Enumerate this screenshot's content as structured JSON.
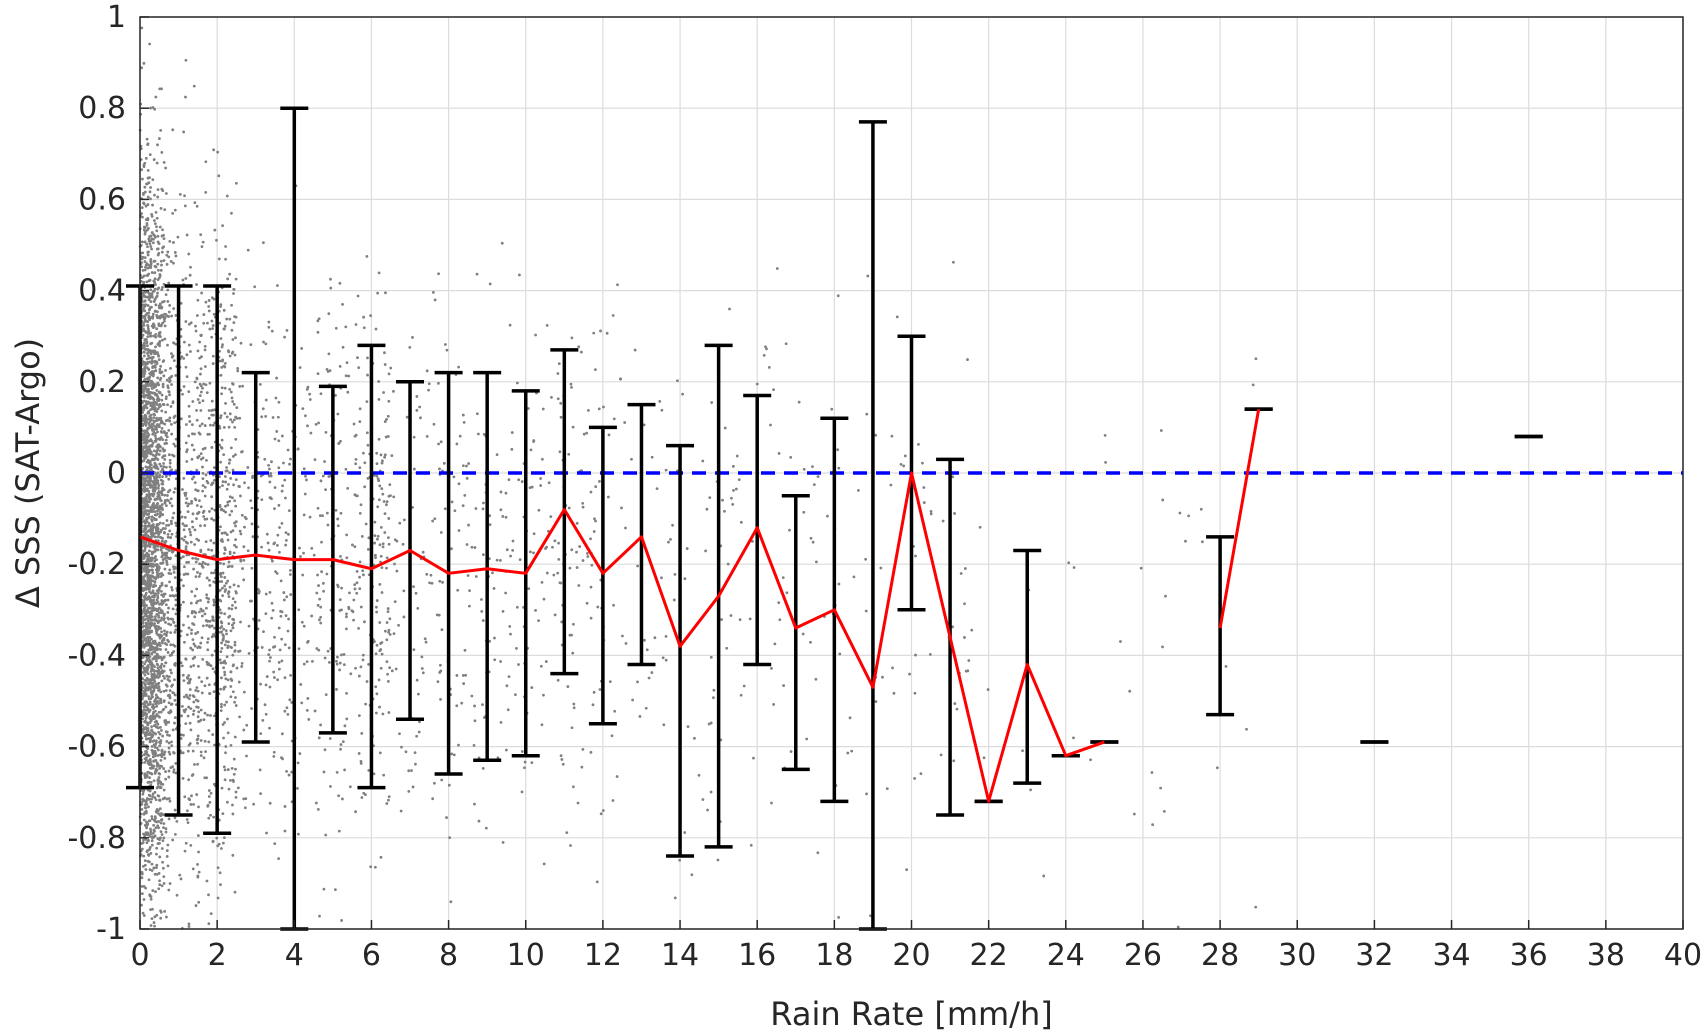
{
  "chart_data": {
    "type": "scatter",
    "xlabel": "Rain Rate [mm/h]",
    "ylabel": "Δ SSS (SAT-Argo)",
    "xlim": [
      0,
      40
    ],
    "ylim": [
      -1,
      1
    ],
    "xticks": [
      0,
      2,
      4,
      6,
      8,
      10,
      12,
      14,
      16,
      18,
      20,
      22,
      24,
      26,
      28,
      30,
      32,
      34,
      36,
      38,
      40
    ],
    "xtick_labels": [
      "0",
      "2",
      "4",
      "6",
      "8",
      "10",
      "12",
      "14",
      "16",
      "18",
      "20",
      "22",
      "24",
      "26",
      "28",
      "30",
      "32",
      "34",
      "36",
      "38",
      "40"
    ],
    "yticks": [
      -1,
      -0.8,
      -0.6,
      -0.4,
      -0.2,
      0,
      0.2,
      0.4,
      0.6,
      0.8,
      1
    ],
    "ytick_labels": [
      "-1",
      "-0.8",
      "-0.6",
      "-0.4",
      "-0.2",
      "0",
      "0.2",
      "0.4",
      "0.6",
      "0.8",
      "1"
    ],
    "grid": true,
    "series": [
      {
        "kind": "scatter",
        "color": "#808080"
      },
      {
        "kind": "errorbar",
        "color": "#000000",
        "x": [
          0,
          1,
          2,
          3,
          4,
          5,
          6,
          7,
          8,
          9,
          10,
          11,
          12,
          13,
          14,
          15,
          16,
          17,
          18,
          19,
          20,
          21,
          22,
          23,
          24,
          25,
          28,
          29,
          32,
          36
        ],
        "lower": [
          -0.69,
          -0.75,
          -0.79,
          -0.59,
          -1.0,
          -0.57,
          -0.69,
          -0.54,
          -0.66,
          -0.63,
          -0.62,
          -0.44,
          -0.55,
          -0.42,
          -0.84,
          -0.82,
          -0.42,
          -0.65,
          -0.72,
          -1.0,
          -0.3,
          -0.75,
          -0.72,
          -0.68,
          -0.62,
          -0.59,
          -0.53,
          0.14,
          -0.59,
          0.08
        ],
        "upper": [
          0.41,
          0.41,
          0.41,
          0.22,
          0.8,
          0.19,
          0.28,
          0.2,
          0.22,
          0.22,
          0.18,
          0.27,
          0.1,
          0.15,
          0.06,
          0.28,
          0.17,
          -0.05,
          0.12,
          0.77,
          0.3,
          0.03,
          -0.72,
          -0.17,
          -0.62,
          -0.59,
          -0.14,
          0.14,
          -0.59,
          0.08
        ]
      },
      {
        "kind": "line",
        "color": "#ff0000",
        "segments": [
          {
            "x": [
              0,
              1,
              2,
              3,
              4,
              5,
              6,
              7,
              8,
              9,
              10,
              11,
              12,
              13,
              14,
              15,
              16,
              17,
              18,
              19,
              20,
              21,
              22,
              23,
              24,
              25
            ],
            "y": [
              -0.14,
              -0.17,
              -0.19,
              -0.18,
              -0.19,
              -0.19,
              -0.21,
              -0.17,
              -0.22,
              -0.21,
              -0.22,
              -0.08,
              -0.22,
              -0.14,
              -0.38,
              -0.27,
              -0.12,
              -0.34,
              -0.3,
              -0.47,
              0.0,
              -0.36,
              -0.72,
              -0.42,
              -0.62,
              -0.59
            ]
          },
          {
            "x": [
              28,
              29
            ],
            "y": [
              -0.34,
              0.14
            ]
          }
        ]
      },
      {
        "kind": "reference-line",
        "color": "#0000ff",
        "style": "dashed",
        "y": 0
      }
    ]
  }
}
